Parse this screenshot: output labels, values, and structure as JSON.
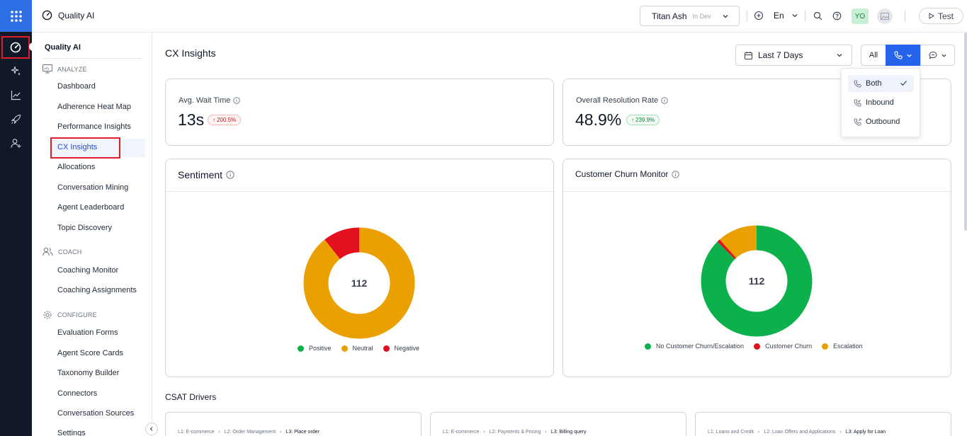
{
  "topbar": {
    "app_title": "Quality AI",
    "env_name": "Titan Ash",
    "env_tag": "In Dev",
    "language": "En",
    "avatar_initials": "YO",
    "test_label": "Test"
  },
  "sidenav": {
    "title": "Quality AI",
    "sections": {
      "analyze": "ANALYZE",
      "coach": "COACH",
      "configure": "CONFIGURE"
    },
    "analyze_items": [
      "Dashboard",
      "Adherence Heat Map",
      "Performance Insights",
      "CX Insights",
      "Allocations",
      "Conversation Mining",
      "Agent Leaderboard",
      "Topic Discovery"
    ],
    "coach_items": [
      "Coaching Monitor",
      "Coaching Assignments"
    ],
    "configure_items": [
      "Evaluation Forms",
      "Agent Score Cards",
      "Taxonomy Builder",
      "Connectors",
      "Conversation Sources",
      "Settings"
    ],
    "active_item": "CX Insights"
  },
  "main": {
    "page_title": "CX Insights",
    "date_range": "Last 7 Days",
    "channel_all": "All",
    "dropdown": {
      "options": [
        "Both",
        "Inbound",
        "Outbound"
      ],
      "selected": "Both"
    },
    "metrics": {
      "wait_time": {
        "label": "Avg. Wait Time",
        "value": "13s",
        "delta": "200.5%"
      },
      "resolution": {
        "label": "Overall Resolution Rate",
        "value": "48.9%",
        "delta": "239.9%"
      }
    },
    "csat_title": "CSAT Drivers",
    "drivers": [
      {
        "l1": "L1: E-commerce",
        "l2": "L2: Order Management",
        "l3": "L3: Place order"
      },
      {
        "l1": "L1: E-commerce",
        "l2": "L2: Payments & Pricing",
        "l3": "L3: Billing query"
      },
      {
        "l1": "L1: Loans and Credit",
        "l2": "L2: Loan Offers and Applications",
        "l3": "L3: Apply for Loan"
      }
    ]
  },
  "chart_data": [
    {
      "type": "pie",
      "title": "Sentiment",
      "center_label": "112",
      "categories": [
        "Positive",
        "Neutral",
        "Negative"
      ],
      "values": [
        0,
        100,
        12
      ],
      "colors": [
        "#0db14b",
        "#e9a000",
        "#e3101e"
      ],
      "legend": "bottom"
    },
    {
      "type": "pie",
      "title": "Customer Churn Monitor",
      "center_label": "112",
      "categories": [
        "No Customer Churn/Escalation",
        "Customer Churn",
        "Escalation"
      ],
      "values": [
        98,
        1,
        13
      ],
      "colors": [
        "#0db14b",
        "#e3101e",
        "#e9a000"
      ],
      "legend": "bottom"
    }
  ]
}
